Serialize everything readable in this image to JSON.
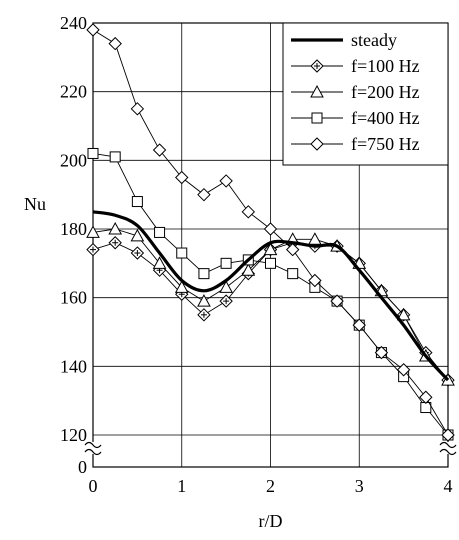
{
  "chart_data": {
    "type": "line",
    "xlabel": "r/D",
    "ylabel": "Nu",
    "xlim": [
      0,
      4
    ],
    "ylim": [
      120,
      240
    ],
    "x_ticks": [
      "0",
      "1",
      "2",
      "3",
      "4"
    ],
    "y_ticks": [
      "120",
      "140",
      "160",
      "180",
      "200",
      "220",
      "240"
    ],
    "y_break_tick": "0",
    "axis_break": "y-axis broken between 0 and 120",
    "grid": true,
    "legend_position": "top-right",
    "series": [
      {
        "name": "steady",
        "marker": "none",
        "line": "thick",
        "color": "#000000",
        "x": [
          0,
          0.25,
          0.5,
          0.75,
          1.0,
          1.25,
          1.5,
          1.75,
          2.0,
          2.25,
          2.5,
          2.75,
          3.0,
          3.25,
          3.5,
          3.75,
          4.0
        ],
        "y": [
          185,
          184,
          181,
          173,
          165,
          162,
          165,
          171,
          176,
          176,
          175,
          175,
          168,
          160,
          152,
          143,
          136
        ]
      },
      {
        "name": "f=100 Hz",
        "marker": "diamond-plus",
        "color": "#000000",
        "x": [
          0,
          0.25,
          0.5,
          0.75,
          1.0,
          1.25,
          1.5,
          1.75,
          2.0,
          2.25,
          2.5,
          2.75,
          3.0,
          3.25,
          3.5,
          3.75,
          4.0
        ],
        "y": [
          174,
          176,
          173,
          168,
          161,
          155,
          159,
          167,
          174,
          176,
          175,
          175,
          170,
          162,
          155,
          144,
          136
        ]
      },
      {
        "name": "f=200 Hz",
        "marker": "triangle",
        "color": "#000000",
        "x": [
          0,
          0.25,
          0.5,
          0.75,
          1.0,
          1.25,
          1.5,
          1.75,
          2.0,
          2.25,
          2.5,
          2.75,
          3.0,
          3.25,
          3.5,
          3.75,
          4.0
        ],
        "y": [
          179,
          180,
          178,
          170,
          163,
          159,
          163,
          168,
          174,
          177,
          177,
          175,
          170,
          162,
          155,
          143,
          136
        ]
      },
      {
        "name": "f=400 Hz",
        "marker": "square",
        "color": "#000000",
        "x": [
          0,
          0.25,
          0.5,
          0.75,
          1.0,
          1.25,
          1.5,
          1.75,
          2.0,
          2.25,
          2.5,
          2.75,
          3.0,
          3.25,
          3.5,
          3.75,
          4.0
        ],
        "y": [
          202,
          201,
          188,
          179,
          173,
          167,
          170,
          171,
          170,
          167,
          163,
          159,
          152,
          144,
          137,
          128,
          120
        ]
      },
      {
        "name": "f=750 Hz",
        "marker": "diamond",
        "color": "#000000",
        "x": [
          0,
          0.25,
          0.5,
          0.75,
          1.0,
          1.25,
          1.5,
          1.75,
          2.0,
          2.25,
          2.5,
          2.75,
          3.0,
          3.25,
          3.5,
          3.75,
          4.0
        ],
        "y": [
          238,
          234,
          215,
          203,
          195,
          190,
          194,
          185,
          180,
          174,
          165,
          159,
          152,
          144,
          139,
          131,
          120
        ]
      }
    ]
  }
}
